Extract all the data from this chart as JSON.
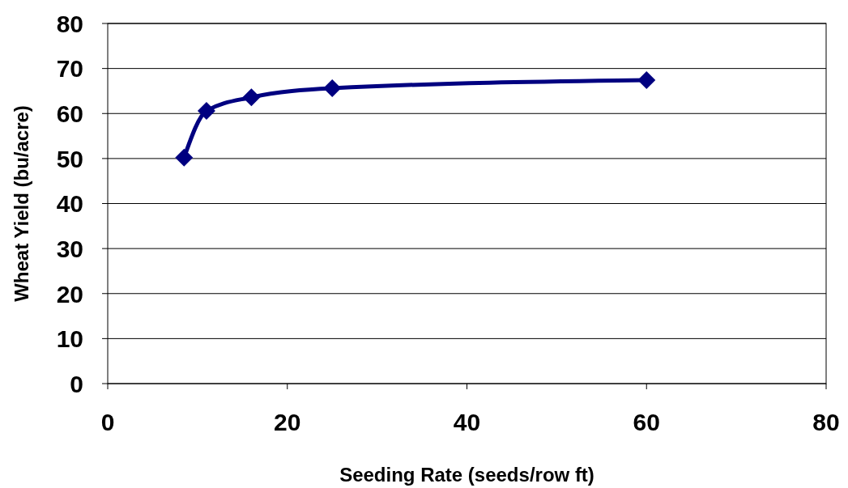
{
  "chart_data": {
    "type": "line",
    "xlabel": "Seeding Rate (seeds/row ft)",
    "ylabel": "Wheat Yield (bu/acre)",
    "x": [
      8.5,
      11,
      16,
      25,
      60
    ],
    "series": [
      {
        "color": "#000080",
        "values": [
          50.2,
          60.6,
          63.6,
          65.6,
          67.4
        ]
      }
    ],
    "xlim": [
      0,
      80
    ],
    "xticks": [
      0,
      20,
      40,
      60,
      80
    ],
    "ylim": [
      0,
      80
    ],
    "yticks": [
      0,
      10,
      20,
      30,
      40,
      50,
      60,
      70,
      80
    ],
    "grid": "y",
    "marker": "diamond",
    "line_style": "solid"
  }
}
